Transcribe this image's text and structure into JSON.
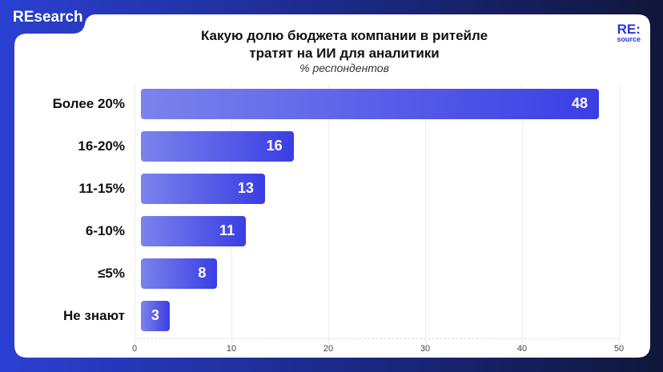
{
  "header": {
    "tab": "REsearch",
    "logo_top": "RE:",
    "logo_bottom": "source"
  },
  "chart_data": {
    "type": "bar",
    "orientation": "horizontal",
    "title": "Какую долю бюджета компании в ритейле тратят на ИИ для аналитики",
    "title_line1": "Какую долю бюджета компании в ритейле",
    "title_line2": "тратят на ИИ для аналитики",
    "subtitle": "% респондентов",
    "categories": [
      "Более 20%",
      "16-20%",
      "11-15%",
      "6-10%",
      "≤5%",
      "Не знают"
    ],
    "values": [
      48,
      16,
      13,
      11,
      8,
      3
    ],
    "xlim": [
      0,
      50
    ],
    "ticks": [
      "0",
      "10",
      "20",
      "30",
      "40",
      "50"
    ],
    "grid": true,
    "colors": {
      "bar_start": "#7b83ec",
      "bar_end": "#3a3ee4"
    }
  }
}
